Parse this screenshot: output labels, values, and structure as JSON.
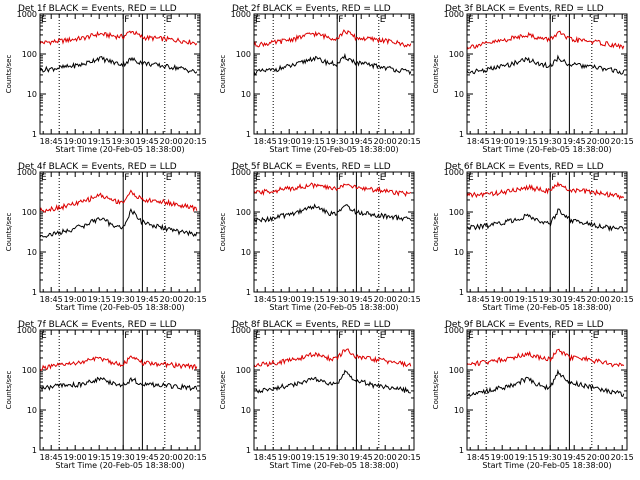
{
  "colors": {
    "events": "#000000",
    "lld": "#dd0000",
    "axis": "#000000"
  },
  "chart_data": [
    {
      "type": "line",
      "title": "Det 1f BLACK = Events, RED = LLD",
      "ylabel": "Counts/sec",
      "xlabel": "Start Time (20-Feb-05 18:38:00)",
      "x_tick_labels": [
        "18:45",
        "19:00",
        "19:15",
        "19:30",
        "19:45",
        "20:00",
        "20:15"
      ],
      "y_tick_labels": [
        "1",
        "10",
        "100",
        "1000"
      ],
      "y_scale": "log",
      "xlim": [
        "18:38",
        "20:18"
      ],
      "ylim": [
        1,
        1000
      ],
      "dotted_markers": [
        "18:50",
        "19:56"
      ],
      "solid_markers": [
        "19:30",
        "19:42"
      ],
      "marker_labels": [
        "E",
        "F",
        "E"
      ],
      "series": [
        {
          "color": "#dd0000",
          "x": [
            "18:38",
            "18:50",
            "19:05",
            "19:15",
            "19:25",
            "19:30",
            "19:35",
            "19:42",
            "19:55",
            "20:05",
            "20:16"
          ],
          "values": [
            190,
            210,
            250,
            320,
            280,
            270,
            380,
            260,
            240,
            220,
            190
          ]
        },
        {
          "color": "#000000",
          "x": [
            "18:38",
            "18:50",
            "19:05",
            "19:15",
            "19:25",
            "19:30",
            "19:35",
            "19:42",
            "19:55",
            "20:05",
            "20:16"
          ],
          "values": [
            40,
            45,
            55,
            80,
            60,
            55,
            75,
            60,
            50,
            45,
            35
          ]
        }
      ]
    },
    {
      "type": "line",
      "title": "Det 2f BLACK = Events, RED = LLD",
      "ylabel": "Counts/sec",
      "xlabel": "Start Time (20-Feb-05 18:38:00)",
      "x_tick_labels": [
        "18:45",
        "19:00",
        "19:15",
        "19:30",
        "19:45",
        "20:00",
        "20:15"
      ],
      "y_tick_labels": [
        "1",
        "10",
        "100",
        "1000"
      ],
      "y_scale": "log",
      "xlim": [
        "18:38",
        "20:18"
      ],
      "ylim": [
        1,
        1000
      ],
      "dotted_markers": [
        "18:50",
        "19:56"
      ],
      "solid_markers": [
        "19:30",
        "19:42"
      ],
      "marker_labels": [
        "E",
        "F",
        "E"
      ],
      "series": [
        {
          "color": "#dd0000",
          "x": [
            "18:38",
            "18:50",
            "19:05",
            "19:15",
            "19:25",
            "19:30",
            "19:35",
            "19:42",
            "19:55",
            "20:05",
            "20:16"
          ],
          "values": [
            170,
            190,
            250,
            330,
            260,
            250,
            380,
            250,
            230,
            200,
            160
          ]
        },
        {
          "color": "#000000",
          "x": [
            "18:38",
            "18:50",
            "19:05",
            "19:15",
            "19:25",
            "19:30",
            "19:35",
            "19:42",
            "19:55",
            "20:05",
            "20:16"
          ],
          "values": [
            35,
            40,
            55,
            80,
            60,
            55,
            85,
            60,
            50,
            42,
            35
          ]
        }
      ]
    },
    {
      "type": "line",
      "title": "Det 3f BLACK = Events, RED = LLD",
      "ylabel": "Counts/sec",
      "xlabel": "Start Time (20-Feb-05 18:38:00)",
      "x_tick_labels": [
        "18:45",
        "19:00",
        "19:15",
        "19:30",
        "19:45",
        "20:00",
        "20:15"
      ],
      "y_tick_labels": [
        "1",
        "10",
        "100",
        "1000"
      ],
      "y_scale": "log",
      "xlim": [
        "18:38",
        "20:18"
      ],
      "ylim": [
        1,
        1000
      ],
      "dotted_markers": [
        "18:50",
        "19:56"
      ],
      "solid_markers": [
        "19:30",
        "19:42"
      ],
      "marker_labels": [
        "E",
        "F",
        "E"
      ],
      "series": [
        {
          "color": "#dd0000",
          "x": [
            "18:38",
            "18:50",
            "19:05",
            "19:15",
            "19:25",
            "19:30",
            "19:35",
            "19:42",
            "19:55",
            "20:05",
            "20:16"
          ],
          "values": [
            150,
            180,
            240,
            310,
            240,
            230,
            350,
            230,
            210,
            180,
            150
          ]
        },
        {
          "color": "#000000",
          "x": [
            "18:38",
            "18:50",
            "19:05",
            "19:15",
            "19:25",
            "19:30",
            "19:35",
            "19:42",
            "19:55",
            "20:05",
            "20:16"
          ],
          "values": [
            35,
            40,
            55,
            75,
            55,
            50,
            80,
            55,
            48,
            42,
            35
          ]
        }
      ]
    },
    {
      "type": "line",
      "title": "Det 4f BLACK = Events, RED = LLD",
      "ylabel": "Counts/sec",
      "xlabel": "Start Time (20-Feb-05 18:38:00)",
      "x_tick_labels": [
        "18:45",
        "19:00",
        "19:15",
        "19:30",
        "19:45",
        "20:00",
        "20:15"
      ],
      "y_tick_labels": [
        "1",
        "10",
        "100",
        "1000"
      ],
      "y_scale": "log",
      "xlim": [
        "18:38",
        "20:18"
      ],
      "ylim": [
        1,
        1000
      ],
      "dotted_markers": [
        "18:50",
        "19:56"
      ],
      "solid_markers": [
        "19:30",
        "19:42"
      ],
      "marker_labels": [
        "E",
        "F",
        "E"
      ],
      "series": [
        {
          "color": "#dd0000",
          "x": [
            "18:38",
            "18:50",
            "19:05",
            "19:15",
            "19:25",
            "19:30",
            "19:35",
            "19:42",
            "19:55",
            "20:05",
            "20:16"
          ],
          "values": [
            110,
            130,
            180,
            270,
            190,
            180,
            320,
            200,
            180,
            150,
            120
          ]
        },
        {
          "color": "#000000",
          "x": [
            "18:38",
            "18:50",
            "19:05",
            "19:15",
            "19:25",
            "19:30",
            "19:35",
            "19:42",
            "19:55",
            "20:05",
            "20:16"
          ],
          "values": [
            25,
            30,
            45,
            70,
            45,
            40,
            110,
            55,
            40,
            32,
            28
          ]
        }
      ]
    },
    {
      "type": "line",
      "title": "Det 5f BLACK = Events, RED = LLD",
      "ylabel": "Counts/sec",
      "xlabel": "Start Time (20-Feb-05 18:38:00)",
      "x_tick_labels": [
        "18:45",
        "19:00",
        "19:15",
        "19:30",
        "19:45",
        "20:00",
        "20:15"
      ],
      "y_tick_labels": [
        "1",
        "10",
        "100",
        "1000"
      ],
      "y_scale": "log",
      "xlim": [
        "18:38",
        "20:18"
      ],
      "ylim": [
        1,
        1000
      ],
      "dotted_markers": [
        "18:50",
        "19:56"
      ],
      "solid_markers": [
        "19:30",
        "19:42"
      ],
      "marker_labels": [
        "E",
        "F",
        "E"
      ],
      "series": [
        {
          "color": "#dd0000",
          "x": [
            "18:38",
            "18:50",
            "19:05",
            "19:15",
            "19:25",
            "19:30",
            "19:35",
            "19:42",
            "19:55",
            "20:05",
            "20:16"
          ],
          "values": [
            300,
            340,
            420,
            470,
            400,
            380,
            520,
            400,
            360,
            320,
            280
          ]
        },
        {
          "color": "#000000",
          "x": [
            "18:38",
            "18:50",
            "19:05",
            "19:15",
            "19:25",
            "19:30",
            "19:35",
            "19:42",
            "19:55",
            "20:05",
            "20:16"
          ],
          "values": [
            60,
            70,
            100,
            140,
            95,
            90,
            150,
            100,
            85,
            75,
            65
          ]
        }
      ]
    },
    {
      "type": "line",
      "title": "Det 6f BLACK = Events, RED = LLD",
      "ylabel": "Counts/sec",
      "xlabel": "Start Time (20-Feb-05 18:38:00)",
      "x_tick_labels": [
        "18:45",
        "19:00",
        "19:15",
        "19:30",
        "19:45",
        "20:00",
        "20:15"
      ],
      "y_tick_labels": [
        "1",
        "10",
        "100",
        "1000"
      ],
      "y_scale": "log",
      "xlim": [
        "18:38",
        "20:18"
      ],
      "ylim": [
        1,
        1000
      ],
      "dotted_markers": [
        "18:50",
        "19:56"
      ],
      "solid_markers": [
        "19:30",
        "19:42"
      ],
      "marker_labels": [
        "E",
        "F",
        "E"
      ],
      "series": [
        {
          "color": "#dd0000",
          "x": [
            "18:38",
            "18:50",
            "19:05",
            "19:15",
            "19:25",
            "19:30",
            "19:35",
            "19:42",
            "19:55",
            "20:05",
            "20:16"
          ],
          "values": [
            260,
            280,
            330,
            420,
            360,
            350,
            480,
            360,
            320,
            280,
            240
          ]
        },
        {
          "color": "#000000",
          "x": [
            "18:38",
            "18:50",
            "19:05",
            "19:15",
            "19:25",
            "19:30",
            "19:35",
            "19:42",
            "19:55",
            "20:05",
            "20:16"
          ],
          "values": [
            40,
            45,
            60,
            80,
            55,
            50,
            110,
            65,
            50,
            42,
            38
          ]
        }
      ]
    },
    {
      "type": "line",
      "title": "Det 7f BLACK = Events, RED = LLD",
      "ylabel": "Counts/sec",
      "xlabel": "Start Time (20-Feb-05 18:38:00)",
      "x_tick_labels": [
        "18:45",
        "19:00",
        "19:15",
        "19:30",
        "19:45",
        "20:00",
        "20:15"
      ],
      "y_tick_labels": [
        "1",
        "10",
        "100",
        "1000"
      ],
      "y_scale": "log",
      "xlim": [
        "18:38",
        "20:18"
      ],
      "ylim": [
        1,
        1000
      ],
      "dotted_markers": [
        "18:50",
        "19:56"
      ],
      "solid_markers": [
        "19:30",
        "19:42"
      ],
      "marker_labels": [
        "E",
        "F",
        "E"
      ],
      "series": [
        {
          "color": "#dd0000",
          "x": [
            "18:38",
            "18:50",
            "19:05",
            "19:15",
            "19:25",
            "19:30",
            "19:35",
            "19:42",
            "19:55",
            "20:05",
            "20:16"
          ],
          "values": [
            110,
            130,
            160,
            200,
            150,
            140,
            210,
            150,
            140,
            130,
            120
          ]
        },
        {
          "color": "#000000",
          "x": [
            "18:38",
            "18:50",
            "19:05",
            "19:15",
            "19:25",
            "19:30",
            "19:35",
            "19:42",
            "19:55",
            "20:05",
            "20:16"
          ],
          "values": [
            35,
            40,
            45,
            60,
            45,
            42,
            60,
            45,
            42,
            38,
            35
          ]
        }
      ]
    },
    {
      "type": "line",
      "title": "Det 8f BLACK = Events, RED = LLD",
      "ylabel": "Counts/sec",
      "xlabel": "Start Time (20-Feb-05 18:38:00)",
      "x_tick_labels": [
        "18:45",
        "19:00",
        "19:15",
        "19:30",
        "19:45",
        "20:00",
        "20:15"
      ],
      "y_tick_labels": [
        "1",
        "10",
        "100",
        "1000"
      ],
      "y_scale": "log",
      "xlim": [
        "18:38",
        "20:18"
      ],
      "ylim": [
        1,
        1000
      ],
      "dotted_markers": [
        "18:50",
        "19:56"
      ],
      "solid_markers": [
        "19:30",
        "19:42"
      ],
      "marker_labels": [
        "E",
        "F",
        "E"
      ],
      "series": [
        {
          "color": "#dd0000",
          "x": [
            "18:38",
            "18:50",
            "19:05",
            "19:15",
            "19:25",
            "19:30",
            "19:35",
            "19:42",
            "19:55",
            "20:05",
            "20:16"
          ],
          "values": [
            130,
            150,
            190,
            250,
            200,
            190,
            330,
            210,
            180,
            160,
            130
          ]
        },
        {
          "color": "#000000",
          "x": [
            "18:38",
            "18:50",
            "19:05",
            "19:15",
            "19:25",
            "19:30",
            "19:35",
            "19:42",
            "19:55",
            "20:05",
            "20:16"
          ],
          "values": [
            30,
            35,
            45,
            60,
            45,
            42,
            90,
            55,
            40,
            35,
            30
          ]
        }
      ]
    },
    {
      "type": "line",
      "title": "Det 9f BLACK = Events, RED = LLD",
      "ylabel": "Counts/sec",
      "xlabel": "Start Time (20-Feb-05 18:38:00)",
      "x_tick_labels": [
        "18:45",
        "19:00",
        "19:15",
        "19:30",
        "19:45",
        "20:00",
        "20:15"
      ],
      "y_tick_labels": [
        "1",
        "10",
        "100",
        "1000"
      ],
      "y_scale": "log",
      "xlim": [
        "18:38",
        "20:18"
      ],
      "ylim": [
        1,
        1000
      ],
      "dotted_markers": [
        "18:50",
        "19:56"
      ],
      "solid_markers": [
        "19:30",
        "19:42"
      ],
      "marker_labels": [
        "E",
        "F",
        "E"
      ],
      "series": [
        {
          "color": "#dd0000",
          "x": [
            "18:38",
            "18:50",
            "19:05",
            "19:15",
            "19:25",
            "19:30",
            "19:35",
            "19:42",
            "19:55",
            "20:05",
            "20:16"
          ],
          "values": [
            140,
            160,
            200,
            260,
            200,
            190,
            310,
            210,
            180,
            150,
            125
          ]
        },
        {
          "color": "#000000",
          "x": [
            "18:38",
            "18:50",
            "19:05",
            "19:15",
            "19:25",
            "19:30",
            "19:35",
            "19:42",
            "19:55",
            "20:05",
            "20:16"
          ],
          "values": [
            25,
            30,
            40,
            60,
            40,
            35,
            90,
            50,
            38,
            30,
            25
          ]
        }
      ]
    }
  ]
}
